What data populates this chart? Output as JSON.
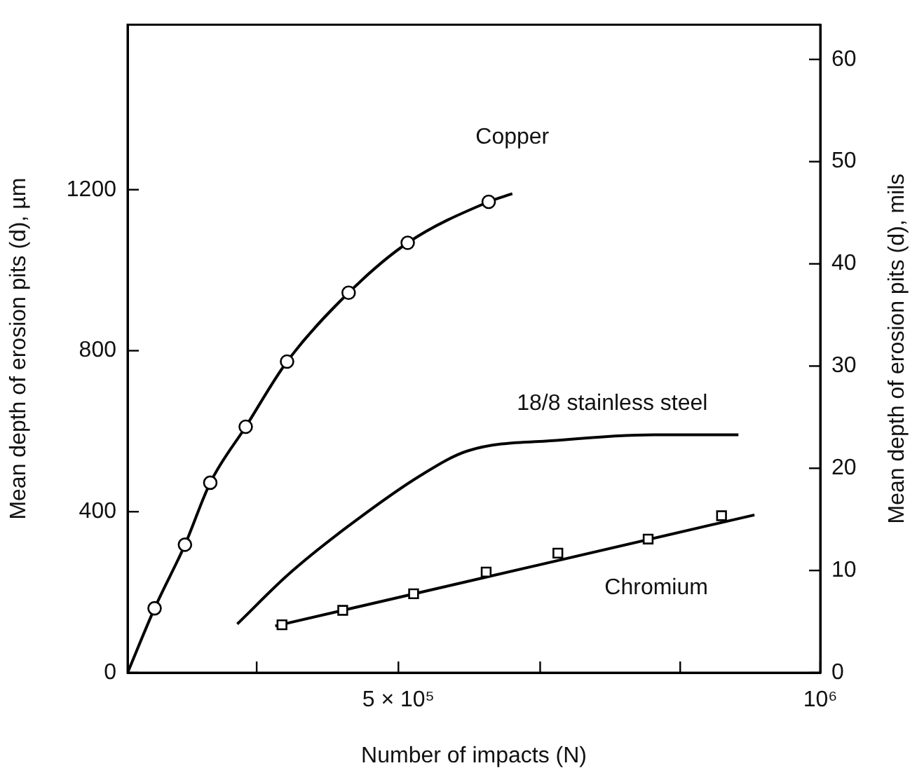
{
  "chart_data": {
    "type": "line",
    "xlabel": "Number of impacts (N)",
    "ylabel": "Mean depth of erosion pits (d), µm",
    "y2label": "Mean depth of erosion pits (d), mils",
    "xlim": [
      179000,
      1000000
    ],
    "xticks": [
      {
        "value": 332000,
        "label": null
      },
      {
        "value": 500000,
        "label": "5 × 10⁵"
      },
      {
        "value": 668000,
        "label": null
      },
      {
        "value": 834000,
        "label": null
      },
      {
        "value": 1000000,
        "label": "10⁶"
      }
    ],
    "ylim": [
      0,
      1610
    ],
    "yticks": [
      0,
      400,
      800,
      1200
    ],
    "y2lim": [
      0,
      63.4
    ],
    "y2ticks": [
      0,
      10,
      20,
      30,
      40,
      50,
      60
    ],
    "grid": false,
    "legend": false,
    "line_style": "solid",
    "series": [
      {
        "name": "Copper",
        "type": "line",
        "marker": "none",
        "color": "#000000",
        "x": [
          179000,
          211000,
          247000,
          277000,
          319000,
          368000,
          441000,
          511000,
          607000,
          635000
        ],
        "values": [
          0,
          160,
          318,
          472,
          611,
          773,
          944,
          1068,
          1170,
          1190
        ]
      },
      {
        "type": "scatter",
        "marker": "circle",
        "color": "#000000",
        "x": [
          211000,
          247000,
          277000,
          319000,
          368000,
          441000,
          511000,
          607000
        ],
        "values": [
          160,
          318,
          472,
          611,
          773,
          944,
          1068,
          1170
        ]
      },
      {
        "name": "18/8 stainless steel",
        "type": "line",
        "marker": "none",
        "color": "#000000",
        "x": [
          309000,
          370000,
          438000,
          527000,
          582000,
          693000,
          803000,
          903000
        ],
        "values": [
          121,
          245,
          360,
          491,
          551,
          578,
          591,
          591
        ]
      },
      {
        "name": "Chromium",
        "type": "line",
        "marker": "none",
        "color": "#000000",
        "x": [
          354000,
          922000
        ],
        "values": [
          116,
          392
        ]
      },
      {
        "type": "scatter",
        "marker": "square",
        "color": "#000000",
        "x": [
          362000,
          434000,
          518000,
          604000,
          689000,
          796000,
          883000
        ],
        "values": [
          119,
          155,
          196,
          250,
          297,
          332,
          390
        ]
      }
    ]
  }
}
